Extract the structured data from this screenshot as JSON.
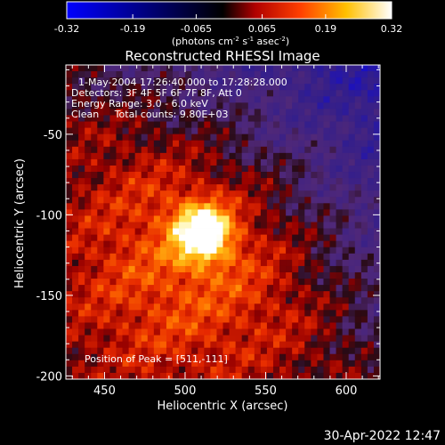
{
  "colorbar": {
    "ticks": [
      "-0.32",
      "-0.19",
      "-0.065",
      "0.065",
      "0.19",
      "0.32"
    ],
    "tick_values": [
      -0.32,
      -0.19,
      -0.065,
      0.065,
      0.19,
      0.32
    ],
    "unit_prefix": "(photons cm",
    "unit_exp1": "-2",
    "unit_mid": " s",
    "unit_exp2": "-1",
    "unit_mid2": " asec",
    "unit_exp3": "-2",
    "unit_suffix": ")",
    "colormap": [
      "#0000ff",
      "#000000",
      "#ff0000",
      "#ffff00",
      "#ffffff"
    ]
  },
  "footer": {
    "timestamp": "30-Apr-2022 12:47"
  },
  "chart_data": {
    "type": "heatmap",
    "title": "Reconstructed RHESSI Image",
    "xlabel": "Heliocentric X (arcsec)",
    "ylabel": "Heliocentric Y (arcsec)",
    "xlim": [
      426,
      621
    ],
    "ylim": [
      -202,
      -7
    ],
    "x_ticks": [
      450,
      500,
      550,
      600
    ],
    "y_ticks": [
      -50,
      -100,
      -150,
      -200
    ],
    "x_tick_labels": [
      "450",
      "500",
      "550",
      "600"
    ],
    "y_tick_labels": [
      "-50",
      "-100",
      "-150",
      "-200"
    ],
    "annotations": {
      "time_range": "1-May-2004 17:26:40.000 to 17:28:28.000",
      "detectors": "Detectors: 3F 4F 5F 6F 7F 8F, Att 0",
      "energy": "Energy Range: 3.0 - 6.0 keV",
      "clean": "Clean     Total counts: 9.80E+03",
      "peak": "Position of Peak = [511,-111]"
    },
    "peak": {
      "x": 511,
      "y": -111
    },
    "colorbar_range": [
      -0.32,
      0.32
    ]
  }
}
